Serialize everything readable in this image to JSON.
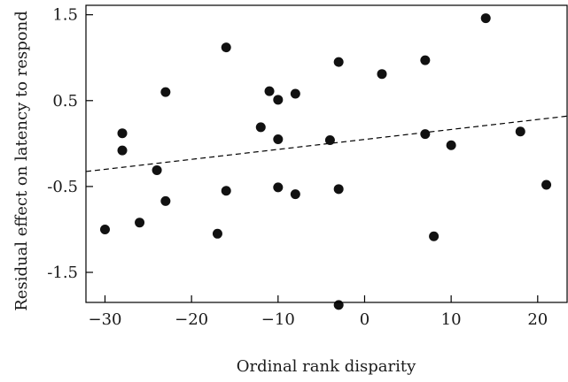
{
  "chart_data": {
    "type": "scatter",
    "xlabel": "Ordinal rank disparity",
    "ylabel": "Residual effect on latency to respond",
    "xlim": [
      -32.2,
      23.4
    ],
    "ylim": [
      -1.85,
      1.61
    ],
    "xticks": [
      -30,
      -20,
      -10,
      0,
      10,
      20
    ],
    "yticks": [
      1.5,
      0.5,
      -0.5,
      -1.5
    ],
    "xtick_labels": [
      "−30",
      "−20",
      "−10",
      "0",
      "10",
      "20"
    ],
    "ytick_labels": [
      "1.5",
      "0.5",
      "-0.5",
      "-1.5"
    ],
    "grid": false,
    "trendline": {
      "style": "dashed",
      "slope": 0.0116,
      "intercept": 0.048
    },
    "points": [
      {
        "x": -30,
        "y": -1.0
      },
      {
        "x": -28,
        "y": 0.12
      },
      {
        "x": -28,
        "y": -0.08
      },
      {
        "x": -26,
        "y": -0.92
      },
      {
        "x": -24,
        "y": -0.31
      },
      {
        "x": -23,
        "y": 0.6
      },
      {
        "x": -23,
        "y": -0.67
      },
      {
        "x": -17,
        "y": -1.05
      },
      {
        "x": -16,
        "y": 1.12
      },
      {
        "x": -16,
        "y": -0.55
      },
      {
        "x": -12,
        "y": 0.19
      },
      {
        "x": -11,
        "y": 0.61
      },
      {
        "x": -10,
        "y": 0.51
      },
      {
        "x": -10,
        "y": 0.05
      },
      {
        "x": -10,
        "y": -0.51
      },
      {
        "x": -8,
        "y": 0.58
      },
      {
        "x": -8,
        "y": -0.59
      },
      {
        "x": -4,
        "y": 0.04
      },
      {
        "x": -3,
        "y": 0.95
      },
      {
        "x": -3,
        "y": -0.53
      },
      {
        "x": -3,
        "y": -1.88
      },
      {
        "x": 2,
        "y": 0.81
      },
      {
        "x": 7,
        "y": 0.97
      },
      {
        "x": 7,
        "y": 0.11
      },
      {
        "x": 8,
        "y": -1.08
      },
      {
        "x": 10,
        "y": -0.02
      },
      {
        "x": 14,
        "y": 1.46
      },
      {
        "x": 18,
        "y": 0.14
      },
      {
        "x": 21,
        "y": -0.48
      }
    ]
  }
}
